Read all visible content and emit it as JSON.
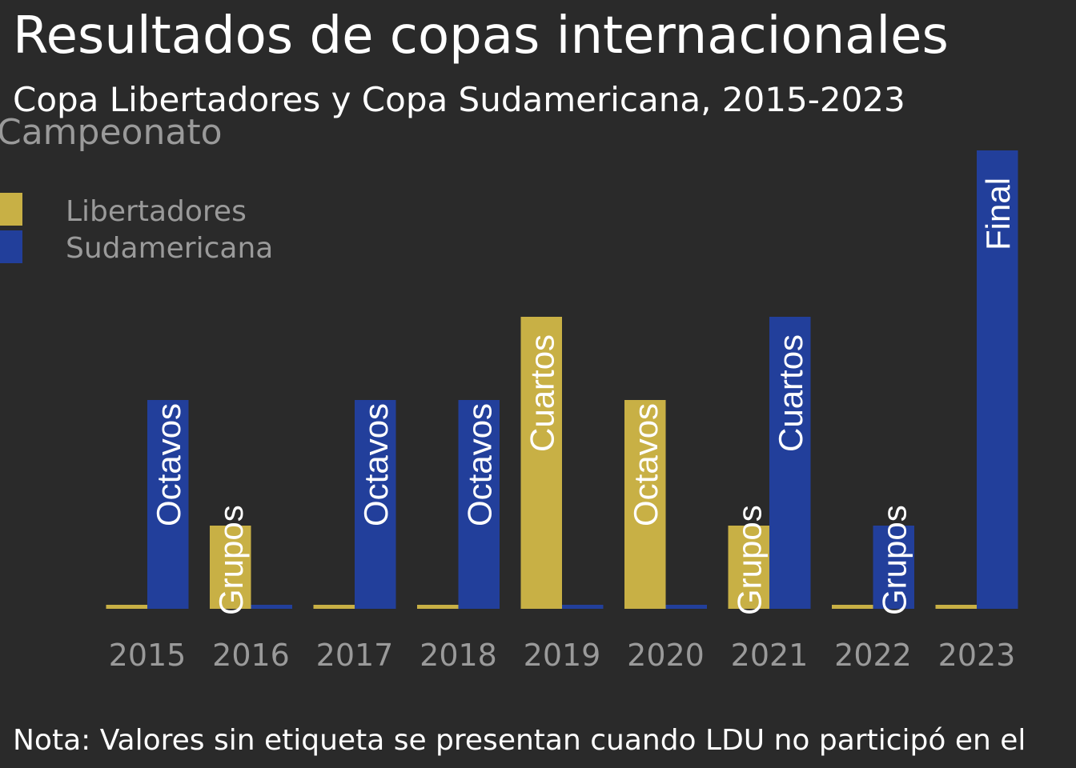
{
  "chart_data": {
    "type": "bar",
    "title": "Resultados de copas internacionales",
    "subtitle": "Copa Libertadores y Copa Sudamericana, 2015-2023",
    "legend_title": "Campeonato",
    "legend_position": "top-left",
    "categories": [
      "2015",
      "2016",
      "2017",
      "2018",
      "2019",
      "2020",
      "2021",
      "2022",
      "2023"
    ],
    "levels": {
      "0": "",
      "1": "Grupos",
      "2": "Octavos",
      "3": "Cuartos",
      "5": "Final"
    },
    "series": [
      {
        "name": "Libertadores",
        "color": "#c8b045",
        "values": [
          0,
          1,
          0,
          0,
          3,
          2,
          1,
          0,
          0
        ],
        "labels": [
          "",
          "Grupos",
          "",
          "",
          "Cuartos",
          "Octavos",
          "Grupos",
          "",
          ""
        ]
      },
      {
        "name": "Sudamericana",
        "color": "#223f9b",
        "values": [
          2,
          0,
          2,
          2,
          0,
          0,
          3,
          1,
          5
        ],
        "labels": [
          "Octavos",
          "",
          "Octavos",
          "Octavos",
          "",
          "",
          "Cuartos",
          "Grupos",
          "Final"
        ]
      }
    ],
    "ylim": [
      0,
      5
    ],
    "grid": false,
    "note": "Nota: Valores sin etiqueta se presentan cuando LDU no participó en el"
  }
}
